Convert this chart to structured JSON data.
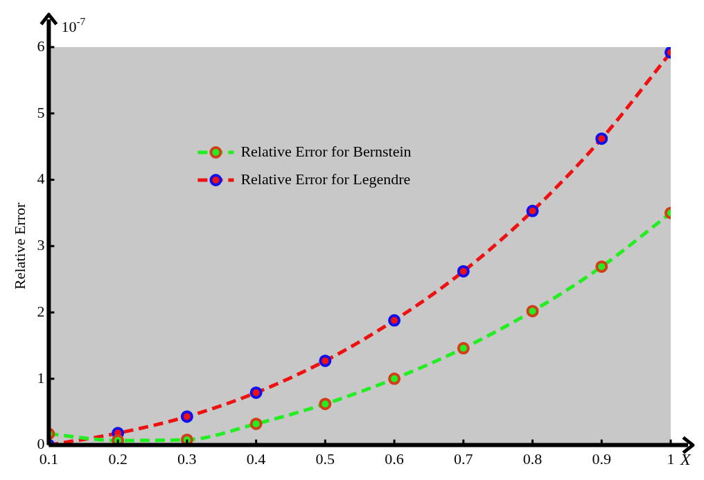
{
  "chart_data": {
    "type": "line",
    "xlabel": "X",
    "ylabel": "Relative Error",
    "annotations": [
      "10$^{-7}$"
    ],
    "x": [
      0.1,
      0.2,
      0.3,
      0.4,
      0.5,
      0.6,
      0.7,
      0.8,
      0.9,
      1
    ],
    "series": [
      {
        "name": "Relative Error for Bernstein",
        "color": "#22ee22",
        "colors": [
          "#d04018",
          "#d04018",
          "#d04018",
          "#d04018",
          "#d04018",
          "#d04018",
          "#d04018",
          "#d04018",
          "#d04018",
          "#d04018"
        ],
        "values": [
          0.17,
          0.07,
          0.08,
          0.32,
          0.62,
          1.0,
          1.46,
          2.02,
          2.69,
          3.5
        ]
      },
      {
        "name": "Relative Error for Legendre",
        "color": "#ee1111",
        "colors": [
          "#1010ee",
          "#1010ee",
          "#1010ee",
          "#1010ee",
          "#1010ee",
          "#1010ee",
          "#1010ee",
          "#1010ee",
          "#1010ee",
          "#1010ee"
        ],
        "values": [
          0.0,
          0.18,
          0.43,
          0.79,
          1.27,
          1.88,
          2.62,
          3.53,
          4.62,
          5.92
        ]
      }
    ],
    "xlim": [
      0.1,
      1
    ],
    "xticks": [
      0.1,
      0.2,
      0.3,
      0.4,
      0.5,
      0.6,
      0.7,
      0.8,
      0.9,
      1
    ],
    "ylim": [
      0,
      6
    ],
    "yticks": [
      0,
      1,
      2,
      3,
      4,
      5,
      6
    ],
    "grid": false,
    "legend": "top left",
    "marker": "circle",
    "line_style": "dashed"
  }
}
